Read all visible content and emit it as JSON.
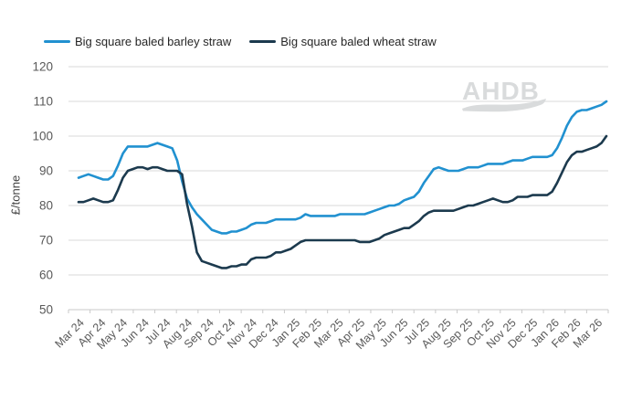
{
  "watermark": "AHDB",
  "y_axis_title": "£/tonne",
  "legend": [
    {
      "label": "Big square baled barley straw",
      "color": "#2191D0"
    },
    {
      "label": "Big square baled wheat straw",
      "color": "#1C3A4E"
    }
  ],
  "colors": {
    "barley_line": "#2191D0",
    "wheat_line": "#1C3A4E",
    "gridline": "#D9D9D9",
    "axis_line": "#C9C9C9",
    "axis_text": "#595959",
    "legend_text": "#262626",
    "watermark": "#D9DBDC"
  },
  "chart_data": {
    "type": "line",
    "title": "",
    "xlabel": "",
    "ylabel": "£/tonne",
    "ylim": [
      50,
      120
    ],
    "ytick_step": 10,
    "grid": true,
    "legend_position": "top",
    "x_resolution": "weekly",
    "categories": [
      "Mar 24",
      "Apr 24",
      "May 24",
      "Jun 24",
      "Jul 24",
      "Aug 24",
      "Sep 24",
      "Oct 24",
      "Nov 24",
      "Dec 24",
      "Jan 25",
      "Feb 25",
      "Mar 25",
      "Apr 25",
      "May 25",
      "Jun 25",
      "Jul 25",
      "Aug 25",
      "Sep 25",
      "Oct 25",
      "Nov 25",
      "Dec 25",
      "Jan 26",
      "Feb 26",
      "Mar 26"
    ],
    "series": [
      {
        "name": "Big square baled barley straw",
        "key": "barley",
        "color": "#2191D0",
        "values": [
          88,
          88.5,
          89,
          88.5,
          88,
          87.5,
          87.5,
          88.5,
          91.5,
          95,
          97,
          97,
          97,
          97,
          97,
          97.5,
          98,
          97.5,
          97,
          96.5,
          93,
          87,
          82,
          79.5,
          77.5,
          76,
          74.5,
          73,
          72.5,
          72,
          72,
          72.5,
          72.5,
          73,
          73.5,
          74.5,
          75,
          75,
          75,
          75.5,
          76,
          76,
          76,
          76,
          76,
          76.5,
          77.5,
          77,
          77,
          77,
          77,
          77,
          77,
          77.5,
          77.5,
          77.5,
          77.5,
          77.5,
          77.5,
          78,
          78.5,
          79,
          79.5,
          80,
          80,
          80.5,
          81.5,
          82,
          82.5,
          84,
          86.5,
          88.5,
          90.5,
          91,
          90.5,
          90,
          90,
          90,
          90.5,
          91,
          91,
          91,
          91.5,
          92,
          92,
          92,
          92,
          92.5,
          93,
          93,
          93,
          93.5,
          94,
          94,
          94,
          94,
          94.5,
          96.5,
          99.5,
          103,
          105.5,
          107,
          107.5,
          107.5,
          108,
          108.5,
          109,
          110
        ]
      },
      {
        "name": "Big square baled wheat straw",
        "key": "wheat",
        "color": "#1C3A4E",
        "values": [
          81,
          81,
          81.5,
          82,
          81.5,
          81,
          81,
          81.5,
          84.5,
          88,
          90,
          90.5,
          91,
          91,
          90.5,
          91,
          91,
          90.5,
          90,
          90,
          90,
          89,
          80.5,
          74,
          66.5,
          64,
          63.5,
          63,
          62.5,
          62,
          62,
          62.5,
          62.5,
          63,
          63,
          64.5,
          65,
          65,
          65,
          65.5,
          66.5,
          66.5,
          67,
          67.5,
          68.5,
          69.5,
          70,
          70,
          70,
          70,
          70,
          70,
          70,
          70,
          70,
          70,
          70,
          69.5,
          69.5,
          69.5,
          70,
          70.5,
          71.5,
          72,
          72.5,
          73,
          73.5,
          73.5,
          74.5,
          75.5,
          77,
          78,
          78.5,
          78.5,
          78.5,
          78.5,
          78.5,
          79,
          79.5,
          80,
          80,
          80.5,
          81,
          81.5,
          82,
          81.5,
          81,
          81,
          81.5,
          82.5,
          82.5,
          82.5,
          83,
          83,
          83,
          83,
          84,
          86.5,
          89.5,
          92.5,
          94.5,
          95.5,
          95.5,
          96,
          96.5,
          97,
          98,
          100
        ]
      }
    ]
  }
}
